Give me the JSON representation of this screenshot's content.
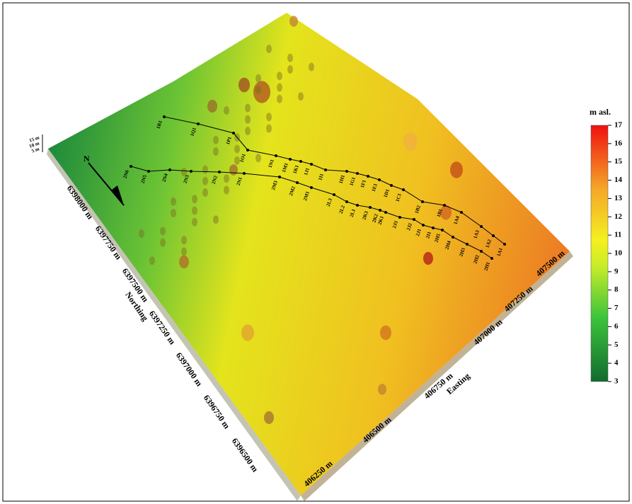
{
  "colorbar": {
    "title": "m asl.",
    "min": 3,
    "max": 17,
    "ticks": [
      3,
      4,
      5,
      6,
      7,
      8,
      9,
      10,
      11,
      12,
      13,
      14,
      15,
      16,
      17
    ]
  },
  "z_scale": [
    "15 m",
    "10 m",
    "5 m"
  ],
  "northing": {
    "label": "Northing",
    "ticks": [
      "6398000 m",
      "6397750 m",
      "6397500 m",
      "6397250 m",
      "6397000 m",
      "6396750 m",
      "6396500 m"
    ]
  },
  "easting": {
    "label": "Easting",
    "ticks": [
      "406250 m",
      "406500 m",
      "406750 m",
      "407000 m",
      "407250 m",
      "407500 m"
    ]
  },
  "north_arrow": "N",
  "profile_1": [
    "1A1",
    "1A2",
    "1A3",
    "1A4",
    "1B1",
    "1B2",
    "1C1",
    "1D1",
    "1E1",
    "1F1",
    "1G1",
    "1H1",
    "1I1",
    "1J1",
    "1K1",
    "1M1",
    "1N1",
    "1O1",
    "1P1",
    "1Q1",
    "1R1"
  ],
  "profile_2": [
    "2H1",
    "2H2",
    "2H3",
    "2H4",
    "2H5",
    "2I1",
    "2J1",
    "2J2",
    "2J3",
    "2K1",
    "2K2",
    "2K3",
    "2L1",
    "2L2",
    "2L3",
    "2M1",
    "2M2",
    "2M3",
    "2N1",
    "2N2",
    "2N3",
    "2N4",
    "2N5",
    "2N6"
  ]
}
